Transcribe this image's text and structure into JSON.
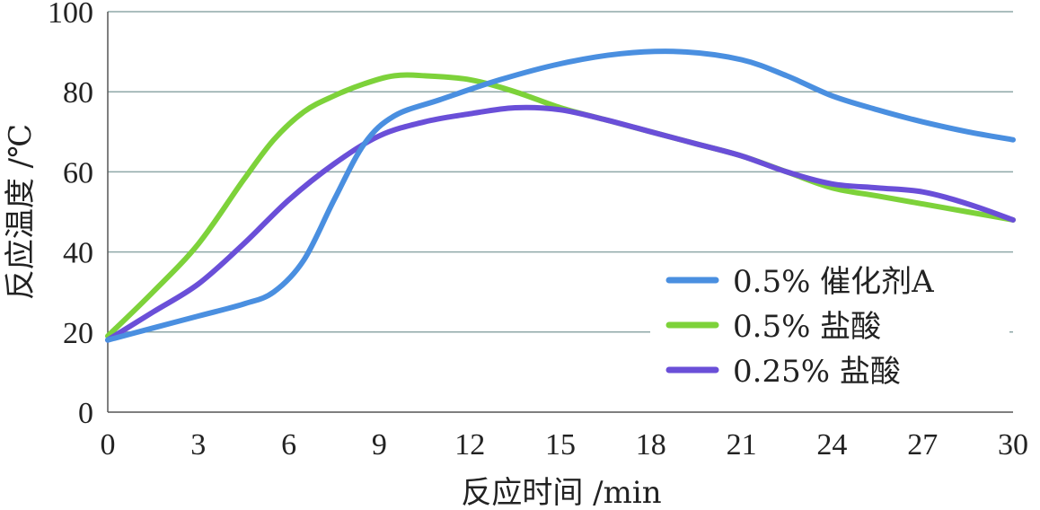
{
  "chart_data": {
    "type": "line",
    "xlabel": "反应时间 /min",
    "ylabel": "反应温度 /℃",
    "xlim": [
      0,
      30
    ],
    "ylim": [
      0,
      100
    ],
    "xticks": [
      "0",
      "3",
      "6",
      "9",
      "12",
      "15",
      "18",
      "21",
      "24",
      "27",
      "30"
    ],
    "yticks": [
      "0",
      "20",
      "40",
      "60",
      "80",
      "100"
    ],
    "grid": "horizontal",
    "legend_position": "bottom-right",
    "series": [
      {
        "name": "0.5% 催化剂A",
        "color": "#4a8fe0",
        "x": [
          0,
          1.5,
          3,
          4.5,
          5.5,
          6.5,
          7.5,
          8.5,
          9.5,
          11,
          13,
          15,
          17,
          19,
          21,
          22.5,
          24,
          25.5,
          27,
          28.5,
          30
        ],
        "y": [
          18,
          21,
          24,
          27,
          30,
          38,
          53,
          67,
          74,
          78,
          83,
          87,
          89.5,
          90,
          88,
          84,
          79,
          75.5,
          72.5,
          70,
          68
        ]
      },
      {
        "name": "0.5% 盐酸",
        "color": "#7dd23a",
        "x": [
          0,
          1.5,
          3,
          4.5,
          5.5,
          6.5,
          7.5,
          8.5,
          9.5,
          10.5,
          12,
          13.5,
          15,
          16.5,
          18,
          19.5,
          21,
          22.5,
          24,
          25.5,
          27,
          28.5,
          30
        ],
        "y": [
          19,
          30,
          42,
          58,
          68,
          75,
          79,
          82,
          84,
          84,
          83,
          80,
          76,
          73,
          70,
          67,
          64,
          60,
          56,
          54,
          52,
          50,
          48
        ]
      },
      {
        "name": "0.25% 盐酸",
        "color": "#6a4fd8",
        "x": [
          0,
          1.5,
          3,
          4.5,
          6,
          7.5,
          9,
          10.5,
          12,
          13.5,
          15,
          16.5,
          18,
          19.5,
          21,
          22.5,
          24,
          25.5,
          27,
          28.5,
          30
        ],
        "y": [
          18,
          25,
          32,
          42,
          53,
          62,
          69,
          72.5,
          74.5,
          76,
          75.5,
          73,
          70,
          67,
          64,
          60,
          57,
          56,
          55,
          52,
          48
        ]
      }
    ]
  }
}
